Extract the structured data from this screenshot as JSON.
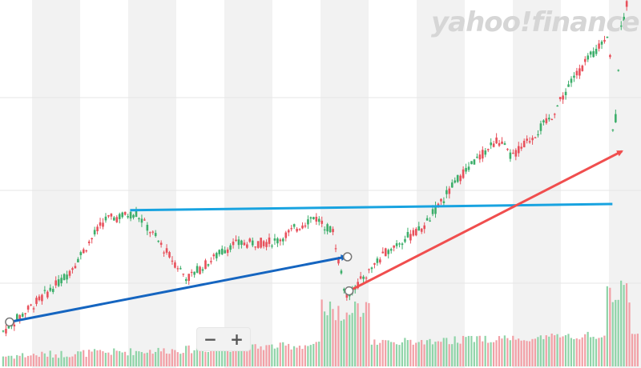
{
  "watermark": {
    "text": "yahoo!finance"
  },
  "zoom": {
    "minus_label": "−",
    "plus_label": "+"
  },
  "colors": {
    "up": "#3cae6a",
    "down": "#e8505b",
    "volume_up": "#8fd4a8",
    "volume_down": "#f2a0a6",
    "band": "#f2f2f2",
    "gridline": "#e6e6e6",
    "resistance_line": "#18a3e0",
    "support_arrow": "#1565c0",
    "trend_arrow": "#f04e4e"
  },
  "chart_data": {
    "type": "candlestick",
    "title": "",
    "xlabel": "",
    "ylabel": "",
    "price_keypoints": [
      {
        "t": 0.0,
        "p": 0.01
      },
      {
        "t": 0.1,
        "p": 0.19
      },
      {
        "t": 0.16,
        "p": 0.37
      },
      {
        "t": 0.21,
        "p": 0.39
      },
      {
        "t": 0.29,
        "p": 0.18
      },
      {
        "t": 0.36,
        "p": 0.29
      },
      {
        "t": 0.43,
        "p": 0.3
      },
      {
        "t": 0.49,
        "p": 0.38
      },
      {
        "t": 0.52,
        "p": 0.33
      },
      {
        "t": 0.54,
        "p": 0.12
      },
      {
        "t": 0.61,
        "p": 0.28
      },
      {
        "t": 0.66,
        "p": 0.34
      },
      {
        "t": 0.72,
        "p": 0.51
      },
      {
        "t": 0.78,
        "p": 0.63
      },
      {
        "t": 0.8,
        "p": 0.57
      },
      {
        "t": 0.86,
        "p": 0.69
      },
      {
        "t": 0.9,
        "p": 0.83
      },
      {
        "t": 0.94,
        "p": 0.93
      },
      {
        "t": 0.955,
        "p": 0.98
      },
      {
        "t": 0.962,
        "p": 0.58
      },
      {
        "t": 0.972,
        "p": 0.96
      },
      {
        "t": 1.0,
        "p": 1.25
      }
    ],
    "annotations": [
      {
        "name": "resistance-line",
        "kind": "line",
        "color": "#18a3e0",
        "from": {
          "t": 0.2,
          "p": 0.4
        },
        "to": {
          "t": 0.96,
          "p": 0.42
        }
      },
      {
        "name": "support-trend-arrow",
        "kind": "arrow",
        "color": "#1565c0",
        "from": {
          "t": 0.01,
          "p": 0.04
        },
        "to": {
          "t": 0.54,
          "p": 0.25
        }
      },
      {
        "name": "recovery-trend-arrow",
        "kind": "arrow",
        "color": "#f04e4e",
        "from": {
          "t": 0.545,
          "p": 0.14
        },
        "to": {
          "t": 0.975,
          "p": 0.59
        }
      }
    ],
    "grid": true,
    "volume_pane": true
  }
}
